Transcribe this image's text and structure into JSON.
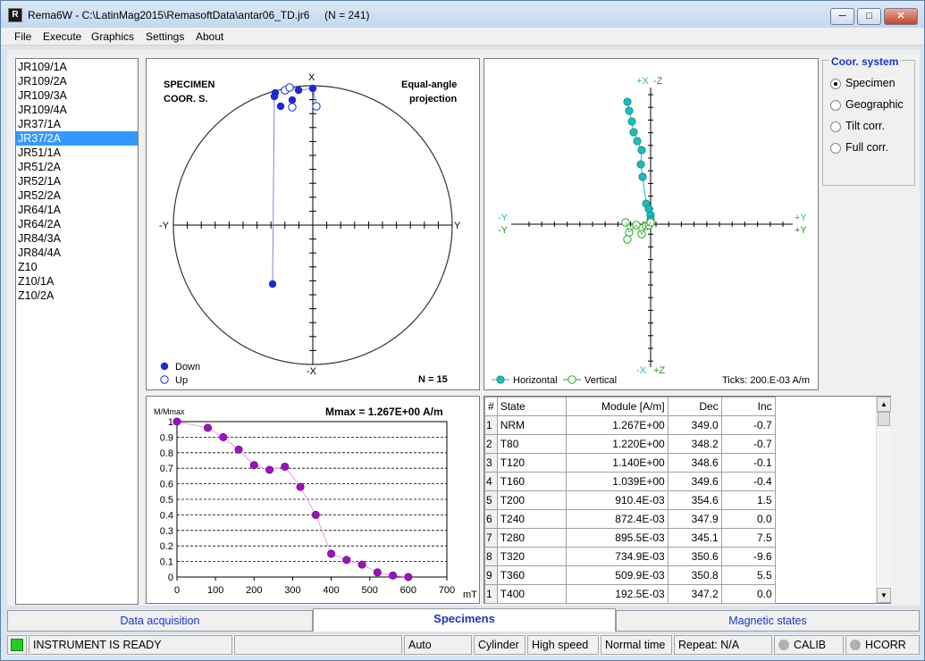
{
  "window": {
    "title": "Rema6W - C:\\LatinMag2015\\RemasoftData\\antar06_TD.jr6     (N = 241)",
    "app_icon_label": "R"
  },
  "menu": [
    "File",
    "Execute",
    "Graphics",
    "Settings",
    "About"
  ],
  "specimens": {
    "items": [
      "JR109/1A",
      "JR109/2A",
      "JR109/3A",
      "JR109/4A",
      "JR37/1A",
      "JR37/2A",
      "JR51/1A",
      "JR51/2A",
      "JR52/1A",
      "JR52/2A",
      "JR64/1A",
      "JR64/2A",
      "JR84/3A",
      "JR84/4A",
      "Z10",
      "Z10/1A",
      "Z10/2A"
    ],
    "selected": "JR37/2A"
  },
  "stereo": {
    "title_left": "SPECIMEN\nCOOR. S.",
    "title_right": "Equal-angle\nprojection",
    "axis_top": "X",
    "axis_bottom": "-X",
    "axis_left": "-Y",
    "axis_right": "Y",
    "legend_down": "Down",
    "legend_up": "Up",
    "n_label": "N = 15"
  },
  "zijderveld": {
    "axis_top": "+X  -Z",
    "axis_bottom": "-X  +Z",
    "axis_left_top": "-Y",
    "axis_left_bottom": "-Y",
    "axis_right_top": "+Y",
    "axis_right_bottom": "+Y",
    "legend_horizontal": "Horizontal",
    "legend_vertical": "Vertical",
    "ticks_label": "Ticks:  200.E-03 A/m"
  },
  "coor_system": {
    "legend": "Coor. system",
    "options": [
      "Specimen",
      "Geographic",
      "Tilt corr.",
      "Full corr."
    ],
    "selected": "Specimen"
  },
  "decay": {
    "ylabel": "M/Mmax",
    "mmax_label": "Mmax =  1.267E+00 A/m",
    "xunit": "mT",
    "y_ticks": [
      "1",
      "0.9",
      "0.8",
      "0.7",
      "0.6",
      "0.5",
      "0.4",
      "0.3",
      "0.2",
      "0.1",
      "0"
    ],
    "x_ticks": [
      "0",
      "100",
      "200",
      "300",
      "400",
      "500",
      "600",
      "700"
    ]
  },
  "chart_data": {
    "type": "line",
    "x": [
      0,
      80,
      120,
      160,
      200,
      240,
      280,
      320,
      360,
      400,
      440,
      480,
      520,
      560,
      600
    ],
    "y": [
      1.0,
      0.96,
      0.9,
      0.82,
      0.72,
      0.69,
      0.71,
      0.58,
      0.4,
      0.15,
      0.11,
      0.08,
      0.03,
      0.01,
      0.0
    ],
    "xlabel": "mT",
    "ylabel": "M/Mmax",
    "xlim": [
      0,
      700
    ],
    "ylim": [
      0,
      1
    ],
    "grid": true,
    "marker_color": "#a010c0",
    "line_color": "#e8a0e0"
  },
  "steps_table": {
    "columns": [
      "#",
      "State",
      "Module [A/m]",
      "Dec",
      "Inc"
    ],
    "rows": [
      [
        "1",
        "NRM",
        "1.267E+00",
        "349.0",
        "-0.7"
      ],
      [
        "2",
        "T80",
        "1.220E+00",
        "348.2",
        "-0.7"
      ],
      [
        "3",
        "T120",
        "1.140E+00",
        "348.6",
        "-0.1"
      ],
      [
        "4",
        "T160",
        "1.039E+00",
        "349.6",
        "-0.4"
      ],
      [
        "5",
        "T200",
        "910.4E-03",
        "354.6",
        "1.5"
      ],
      [
        "6",
        "T240",
        "872.4E-03",
        "347.9",
        "0.0"
      ],
      [
        "7",
        "T280",
        "895.5E-03",
        "345.1",
        "7.5"
      ],
      [
        "8",
        "T320",
        "734.9E-03",
        "350.6",
        "-9.6"
      ],
      [
        "9",
        "T360",
        "509.9E-03",
        "350.8",
        "5.5"
      ],
      [
        "1",
        "T400",
        "192.5E-03",
        "347.2",
        "0.0"
      ]
    ]
  },
  "tabs": [
    "Data acquisition",
    "Specimens",
    "Magnetic states"
  ],
  "active_tab": "Specimens",
  "status": {
    "ready": "INSTRUMENT IS READY",
    "mode": "Auto",
    "shape": "Cylinder",
    "speed": "High speed",
    "time": "Normal time",
    "repeat": "Repeat: N/A",
    "calib": "CALIB",
    "hcorr": "HCORR",
    "ready_color": "#22cc22"
  }
}
